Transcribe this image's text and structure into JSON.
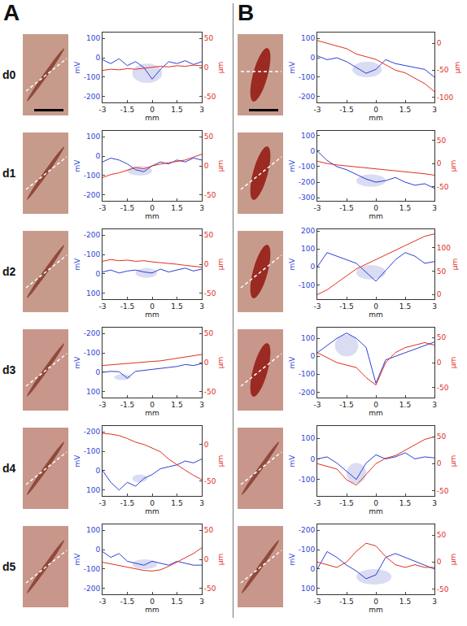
{
  "panels": [
    "A",
    "B"
  ],
  "rows": [
    "d0",
    "d1",
    "d2",
    "d3",
    "d4",
    "d5"
  ],
  "chart_data": [
    {
      "type": "line",
      "xlabel": "mm",
      "ylabel": "mV",
      "y2label": "µm",
      "grid": false,
      "x": [
        -3,
        -2.5,
        -2,
        -1.5,
        -1,
        -0.5,
        0,
        0.5,
        1,
        1.5,
        2,
        2.5,
        3
      ],
      "xlim": [
        -3,
        3
      ],
      "xticks": [
        -3,
        -1.5,
        0,
        1.5,
        3
      ],
      "ylim": [
        -230,
        130
      ],
      "yticks": [
        -200,
        -100,
        0,
        100
      ],
      "y2lim": [
        -60,
        60
      ],
      "y2ticks": [
        -50,
        0,
        50
      ],
      "highlight": {
        "x": [
          -1.2,
          0.6
        ],
        "y": [
          -130,
          -30
        ]
      },
      "series": [
        {
          "color": "#2f3fd6",
          "values": [
            -10,
            -30,
            -5,
            -40,
            -20,
            -50,
            -110,
            -60,
            -20,
            -30,
            -15,
            -35,
            -20
          ]
        },
        {
          "color": "#e0301e",
          "axis": "y2",
          "values": [
            -5,
            -3,
            -4,
            -2,
            -3,
            -1,
            0,
            2,
            1,
            3,
            2,
            4,
            3
          ]
        }
      ]
    },
    {
      "type": "line",
      "xlabel": "mm",
      "ylabel": "mV",
      "y2label": "µm",
      "grid": false,
      "x": [
        -3,
        -2.5,
        -2,
        -1.5,
        -1,
        -0.5,
        0,
        0.5,
        1,
        1.5,
        2,
        2.5,
        3
      ],
      "xlim": [
        -3,
        3
      ],
      "xticks": [
        -3,
        -1.5,
        0,
        1.5,
        3
      ],
      "ylim": [
        -230,
        130
      ],
      "yticks": [
        -200,
        -100,
        0,
        100
      ],
      "y2lim": [
        -60,
        60
      ],
      "y2ticks": [
        -50,
        0,
        50
      ],
      "highlight": {
        "x": [
          -1.5,
          0
        ],
        "y": [
          -100,
          -50
        ]
      },
      "series": [
        {
          "color": "#2f3fd6",
          "values": [
            -30,
            -10,
            -20,
            -40,
            -70,
            -80,
            -50,
            -30,
            -40,
            -20,
            -30,
            -10,
            -20
          ]
        },
        {
          "color": "#e0301e",
          "axis": "y2",
          "values": [
            -20,
            -15,
            -12,
            -8,
            -3,
            -5,
            0,
            3,
            5,
            8,
            10,
            15,
            20
          ]
        }
      ]
    },
    {
      "type": "line",
      "xlabel": "mm",
      "ylabel": "mV",
      "y2label": "µm",
      "grid": false,
      "x": [
        -3,
        -2.5,
        -2,
        -1.5,
        -1,
        -0.5,
        0,
        0.5,
        1,
        1.5,
        2,
        2.5,
        3
      ],
      "xlim": [
        -3,
        3
      ],
      "xticks": [
        -3,
        -1.5,
        0,
        1.5,
        3
      ],
      "ylim": [
        130,
        -230
      ],
      "yticks": [
        -200,
        -100,
        0,
        100
      ],
      "y2lim": [
        -60,
        60
      ],
      "y2ticks": [
        -50,
        0,
        50
      ],
      "highlight": {
        "x": [
          -1,
          0.3
        ],
        "y": [
          -30,
          20
        ]
      },
      "series": [
        {
          "color": "#2f3fd6",
          "values": [
            -10,
            -20,
            -5,
            -15,
            -20,
            -10,
            -5,
            -25,
            -10,
            -20,
            -30,
            -15,
            -25
          ]
        },
        {
          "color": "#e0301e",
          "axis": "y2",
          "values": [
            5,
            8,
            6,
            7,
            5,
            6,
            4,
            3,
            2,
            0,
            -2,
            -3,
            -5
          ]
        }
      ]
    },
    {
      "type": "line",
      "xlabel": "mm",
      "ylabel": "mV",
      "y2label": "µm",
      "grid": false,
      "x": [
        -3,
        -2.5,
        -2,
        -1.5,
        -1,
        -0.5,
        0,
        0.5,
        1,
        1.5,
        2,
        2.5,
        3
      ],
      "xlim": [
        -3,
        3
      ],
      "xticks": [
        -3,
        -1.5,
        0,
        1.5,
        3
      ],
      "ylim": [
        130,
        -230
      ],
      "yticks": [
        -200,
        -100,
        0,
        100
      ],
      "y2lim": [
        -60,
        60
      ],
      "y2ticks": [
        -50,
        0,
        50
      ],
      "highlight": {
        "x": [
          -2.3,
          -1.3
        ],
        "y": [
          10,
          40
        ]
      },
      "series": [
        {
          "color": "#2f3fd6",
          "values": [
            0,
            -5,
            -3,
            30,
            -5,
            -10,
            -15,
            -20,
            -25,
            -30,
            -40,
            -35,
            -45
          ]
        },
        {
          "color": "#e0301e",
          "axis": "y2",
          "values": [
            -5,
            -4,
            -3,
            -2,
            0,
            1,
            2,
            3,
            5,
            7,
            9,
            11,
            14
          ]
        }
      ]
    },
    {
      "type": "line",
      "xlabel": "mm",
      "ylabel": "mV",
      "y2label": "µm",
      "grid": false,
      "x": [
        -3,
        -2.5,
        -2,
        -1.5,
        -1,
        -0.5,
        0,
        0.5,
        1,
        1.5,
        2,
        2.5,
        3
      ],
      "xlim": [
        -3,
        3
      ],
      "xticks": [
        -3,
        -1.5,
        0,
        1.5,
        3
      ],
      "ylim": [
        130,
        -230
      ],
      "yticks": [
        -200,
        -100,
        0,
        100
      ],
      "y2lim": [
        -70,
        25
      ],
      "y2ticks": [
        -50,
        0
      ],
      "highlight": {
        "x": [
          -1.2,
          -0.3
        ],
        "y": [
          20,
          60
        ]
      },
      "series": [
        {
          "color": "#2f3fd6",
          "values": [
            0,
            60,
            100,
            60,
            80,
            40,
            20,
            -10,
            -20,
            -30,
            -50,
            -40,
            -60
          ]
        },
        {
          "color": "#e0301e",
          "axis": "y2",
          "values": [
            15,
            14,
            12,
            8,
            3,
            0,
            -5,
            -10,
            -20,
            -28,
            -35,
            -42,
            -48
          ]
        }
      ]
    },
    {
      "type": "line",
      "xlabel": "mm",
      "ylabel": "mV",
      "y2label": "µm",
      "grid": false,
      "x": [
        -3,
        -2.5,
        -2,
        -1.5,
        -1,
        -0.5,
        0,
        0.5,
        1,
        1.5,
        2,
        2.5,
        3
      ],
      "xlim": [
        -3,
        3
      ],
      "xticks": [
        -3,
        -1.5,
        0,
        1.5,
        3
      ],
      "ylim": [
        -230,
        130
      ],
      "yticks": [
        -200,
        -100,
        0,
        100
      ],
      "y2lim": [
        -60,
        60
      ],
      "y2ticks": [
        -50,
        0,
        50
      ],
      "highlight": {
        "x": [
          -1.2,
          0.3
        ],
        "y": [
          -100,
          -50
        ]
      },
      "series": [
        {
          "color": "#2f3fd6",
          "values": [
            -10,
            -40,
            -20,
            -60,
            -70,
            -80,
            -60,
            -70,
            -80,
            -60,
            -70,
            -80,
            -80
          ]
        },
        {
          "color": "#e0301e",
          "axis": "y2",
          "values": [
            -5,
            -8,
            -10,
            -14,
            -17,
            -19,
            -20,
            -18,
            -12,
            -5,
            3,
            10,
            20
          ]
        }
      ]
    },
    {
      "type": "line",
      "xlabel": "mm",
      "ylabel": "mV",
      "y2label": "µm",
      "grid": false,
      "x": [
        -3,
        -2.5,
        -2,
        -1.5,
        -1,
        -0.5,
        0,
        0.5,
        1,
        1.5,
        2,
        2.5,
        3
      ],
      "xlim": [
        -3,
        3
      ],
      "xticks": [
        -3,
        -1.5,
        0,
        1.5,
        3
      ],
      "ylim": [
        -230,
        130
      ],
      "yticks": [
        -200,
        -100,
        0,
        100
      ],
      "y2lim": [
        -110,
        20
      ],
      "y2ticks": [
        -100,
        -50,
        0
      ],
      "highlight": {
        "x": [
          -1.2,
          0.3
        ],
        "y": [
          -100,
          -20
        ]
      },
      "series": [
        {
          "color": "#2f3fd6",
          "values": [
            10,
            -10,
            0,
            -20,
            -50,
            -80,
            -60,
            -10,
            -30,
            -40,
            -50,
            -60,
            -100
          ]
        },
        {
          "color": "#e0301e",
          "axis": "y2",
          "values": [
            5,
            0,
            -5,
            -10,
            -20,
            -25,
            -30,
            -40,
            -50,
            -55,
            -65,
            -75,
            -90
          ]
        }
      ]
    },
    {
      "type": "line",
      "xlabel": "mm",
      "ylabel": "mV",
      "y2label": "µm",
      "grid": false,
      "x": [
        -3,
        -2.5,
        -2,
        -1.5,
        -1,
        -0.5,
        0,
        0.5,
        1,
        1.5,
        2,
        2.5,
        3
      ],
      "xlim": [
        -3,
        3
      ],
      "xticks": [
        -3,
        -1.5,
        0,
        1.5,
        3
      ],
      "ylim": [
        -320,
        130
      ],
      "yticks": [
        -300,
        -200,
        -100,
        0,
        100
      ],
      "y2lim": [
        -80,
        70
      ],
      "y2ticks": [
        -50,
        0,
        50
      ],
      "highlight": {
        "x": [
          -1,
          0.5
        ],
        "y": [
          -230,
          -150
        ]
      },
      "series": [
        {
          "color": "#2f3fd6",
          "values": [
            0,
            -60,
            -100,
            -120,
            -150,
            -180,
            -200,
            -190,
            -170,
            -200,
            -220,
            -210,
            -240
          ]
        },
        {
          "color": "#e0301e",
          "axis": "y2",
          "values": [
            5,
            0,
            -3,
            -5,
            -8,
            -10,
            -12,
            -14,
            -15,
            -18,
            -20,
            -22,
            -25
          ]
        }
      ]
    },
    {
      "type": "line",
      "xlabel": "mm",
      "ylabel": "mV",
      "y2label": "µm",
      "grid": false,
      "x": [
        -3,
        -2.5,
        -2,
        -1.5,
        -1,
        -0.5,
        0,
        0.5,
        1,
        1.5,
        2,
        2.5,
        3
      ],
      "xlim": [
        -3,
        3
      ],
      "xticks": [
        -3,
        -1.5,
        0,
        1.5,
        3
      ],
      "ylim": [
        -180,
        210
      ],
      "yticks": [
        -100,
        0,
        100,
        200
      ],
      "y2lim": [
        -10,
        140
      ],
      "y2ticks": [
        0,
        50,
        100
      ],
      "highlight": {
        "x": [
          -1,
          0.5
        ],
        "y": [
          -70,
          10
        ]
      },
      "series": [
        {
          "color": "#2f3fd6",
          "values": [
            0,
            80,
            60,
            40,
            20,
            -30,
            -80,
            -20,
            40,
            80,
            60,
            20,
            30
          ]
        },
        {
          "color": "#e0301e",
          "axis": "y2",
          "values": [
            0,
            10,
            25,
            40,
            55,
            65,
            75,
            85,
            95,
            105,
            115,
            125,
            130
          ]
        }
      ]
    },
    {
      "type": "line",
      "xlabel": "mm",
      "ylabel": "mV",
      "y2label": "µm",
      "grid": false,
      "x": [
        -3,
        -2.5,
        -2,
        -1.5,
        -1,
        -0.5,
        0,
        0.5,
        1,
        1.5,
        2,
        2.5,
        3
      ],
      "xlim": [
        -3,
        3
      ],
      "xticks": [
        -3,
        -1.5,
        0,
        1.5,
        3
      ],
      "ylim": [
        -230,
        160
      ],
      "yticks": [
        -200,
        -100,
        0,
        100
      ],
      "y2lim": [
        -70,
        70
      ],
      "y2ticks": [
        -50,
        0,
        50
      ],
      "highlight": {
        "x": [
          -2.1,
          -0.9
        ],
        "y": [
          0,
          120
        ]
      },
      "series": [
        {
          "color": "#2f3fd6",
          "values": [
            20,
            60,
            100,
            130,
            100,
            50,
            -150,
            -20,
            0,
            20,
            40,
            60,
            80
          ]
        },
        {
          "color": "#e0301e",
          "axis": "y2",
          "values": [
            20,
            10,
            0,
            -5,
            -10,
            -30,
            -45,
            0,
            20,
            30,
            35,
            40,
            35
          ]
        }
      ]
    },
    {
      "type": "line",
      "xlabel": "mm",
      "ylabel": "mV",
      "y2label": "µm",
      "grid": false,
      "x": [
        -3,
        -2.5,
        -2,
        -1.5,
        -1,
        -0.5,
        0,
        0.5,
        1,
        1.5,
        2,
        2.5,
        3
      ],
      "xlim": [
        -3,
        3
      ],
      "xticks": [
        -3,
        -1.5,
        0,
        1.5,
        3
      ],
      "ylim": [
        -180,
        160
      ],
      "yticks": [
        -100,
        0,
        100
      ],
      "y2lim": [
        -60,
        70
      ],
      "y2ticks": [
        -50,
        0,
        50
      ],
      "highlight": {
        "x": [
          -1.5,
          -0.5
        ],
        "y": [
          -120,
          -20
        ]
      },
      "series": [
        {
          "color": "#2f3fd6",
          "values": [
            0,
            10,
            -20,
            -60,
            -100,
            -20,
            20,
            0,
            10,
            30,
            0,
            10,
            5
          ]
        },
        {
          "color": "#e0301e",
          "axis": "y2",
          "values": [
            0,
            -5,
            -10,
            -30,
            -40,
            -20,
            0,
            10,
            15,
            25,
            35,
            45,
            50
          ]
        }
      ]
    },
    {
      "type": "line",
      "xlabel": "mm",
      "ylabel": "mV",
      "y2label": "µm",
      "grid": false,
      "x": [
        -3,
        -2.5,
        -2,
        -1.5,
        -1,
        -0.5,
        0,
        0.5,
        1,
        1.5,
        2,
        2.5,
        3
      ],
      "xlim": [
        -3,
        3
      ],
      "xticks": [
        -3,
        -1.5,
        0,
        1.5,
        3
      ],
      "ylim": [
        130,
        -230
      ],
      "yticks": [
        -200,
        -100,
        0,
        100
      ],
      "y2lim": [
        -60,
        70
      ],
      "y2ticks": [
        -50,
        0,
        50
      ],
      "highlight": {
        "x": [
          -1,
          0.8
        ],
        "y": [
          0,
          80
        ]
      },
      "series": [
        {
          "color": "#2f3fd6",
          "values": [
            0,
            -90,
            -60,
            -20,
            10,
            50,
            30,
            -60,
            -80,
            -60,
            -40,
            -20,
            0
          ]
        },
        {
          "color": "#e0301e",
          "axis": "y2",
          "values": [
            0,
            -5,
            -10,
            0,
            20,
            35,
            30,
            10,
            -5,
            -10,
            -5,
            -10,
            -10
          ]
        }
      ]
    }
  ]
}
